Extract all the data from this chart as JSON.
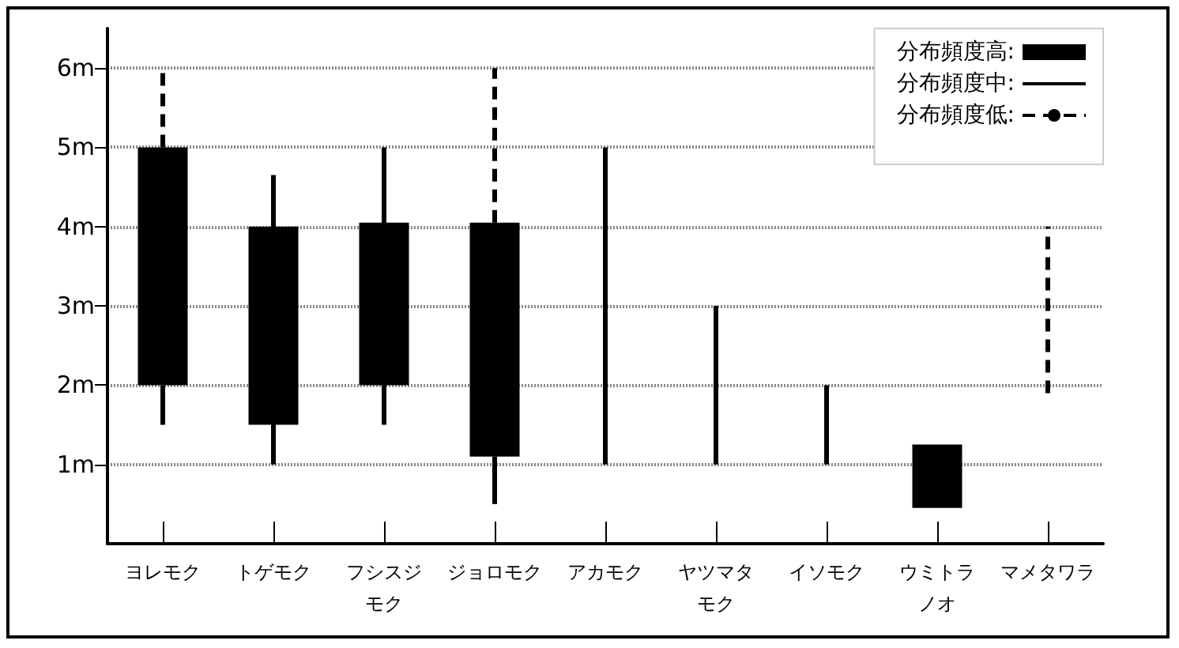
{
  "chart_data": {
    "type": "bar",
    "categories": [
      "ヨレモク",
      "トゲモク",
      "フシスジモク",
      "ジョロモク",
      "アカモク",
      "ヤツマタモク",
      "イソモク",
      "ウミトラノオ",
      "マメタワラ"
    ],
    "series": [
      {
        "name": "分布頻度高:",
        "color": "#000000",
        "base": [
          2,
          1.5,
          2,
          1.1,
          null,
          null,
          null,
          0.45,
          null
        ],
        "values": [
          3,
          2.5,
          2.05,
          2.95,
          null,
          null,
          null,
          0.8,
          null
        ]
      },
      {
        "name": "分布頻度中:",
        "color": "#000000",
        "line_style": "solid",
        "base": [
          1.5,
          1,
          1.5,
          0.5,
          1,
          1,
          1,
          null,
          null
        ],
        "values": [
          0.5,
          3.65,
          3.5,
          0.6,
          4,
          2,
          1,
          null,
          null
        ]
      },
      {
        "name": "分布頻度低:",
        "type": "line",
        "color": "#000000",
        "line_style": "dashed",
        "x": [
          "ヨレモク",
          "ヨレモク",
          "ヨレモク",
          "ジョロモク",
          "ジョロモク",
          "ジョロモク",
          "マメタワラ",
          "マメタワラ"
        ],
        "values": [
          5,
          6,
          null,
          4.05,
          6,
          null,
          1.9,
          4
        ]
      }
    ],
    "ylim": [
      0,
      6.5
    ],
    "yticks": [
      {
        "value": 1,
        "label": "1m"
      },
      {
        "value": 2,
        "label": "2m"
      },
      {
        "value": 3,
        "label": "3m"
      },
      {
        "value": 4,
        "label": "4m"
      },
      {
        "value": 5,
        "label": "5m"
      },
      {
        "value": 6,
        "label": "6m"
      }
    ],
    "grid": "y",
    "legend": "top right"
  }
}
